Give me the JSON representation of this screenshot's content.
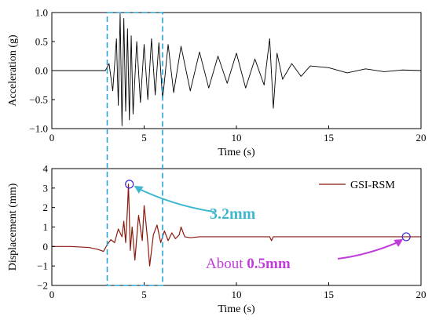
{
  "chart_data": [
    {
      "type": "line",
      "xlabel": "Time (s)",
      "ylabel": "Acceleration (g)",
      "xlim": [
        0,
        20
      ],
      "ylim": [
        -1.0,
        1.0
      ],
      "xticks": [
        0,
        5,
        10,
        15,
        20
      ],
      "yticks": [
        -1.0,
        -0.5,
        0.0,
        0.5,
        1.0
      ],
      "x_tick_labels": [
        "0",
        "5",
        "10",
        "15",
        "20"
      ],
      "y_tick_labels": [
        "−1.0",
        "−0.5",
        "0.0",
        "0.5",
        "1.0"
      ],
      "series": [
        {
          "color": "#000000",
          "x": [
            0,
            1,
            2,
            2.9,
            3.1,
            3.3,
            3.5,
            3.6,
            3.7,
            3.8,
            3.9,
            4.0,
            4.1,
            4.2,
            4.3,
            4.4,
            4.6,
            4.8,
            5.0,
            5.2,
            5.4,
            5.6,
            5.8,
            6.0,
            6.3,
            6.6,
            7.0,
            7.5,
            8.0,
            8.5,
            9.0,
            9.5,
            10.0,
            10.5,
            11.0,
            11.5,
            11.8,
            12.0,
            12.2,
            12.5,
            13.0,
            13.5,
            14.0,
            15.0,
            16.0,
            17.0,
            18.0,
            19.0,
            20.0
          ],
          "values": [
            0.0,
            0.0,
            0.0,
            0.0,
            0.12,
            -0.35,
            0.55,
            -0.6,
            0.98,
            -0.95,
            0.9,
            -0.7,
            0.72,
            -0.85,
            0.6,
            -0.75,
            0.5,
            -0.55,
            0.45,
            -0.5,
            0.55,
            -0.42,
            0.48,
            -0.5,
            0.45,
            -0.38,
            0.42,
            -0.35,
            0.32,
            -0.3,
            0.25,
            -0.22,
            0.3,
            -0.3,
            0.2,
            -0.25,
            0.55,
            -0.65,
            0.3,
            -0.15,
            0.12,
            -0.1,
            0.08,
            0.05,
            -0.04,
            0.03,
            -0.02,
            0.01,
            0.0
          ]
        }
      ],
      "annotations": []
    },
    {
      "type": "line",
      "xlabel": "Time (s)",
      "ylabel": "Displacement (mm)",
      "xlim": [
        0,
        20
      ],
      "ylim": [
        -2,
        4
      ],
      "xticks": [
        0,
        5,
        10,
        15,
        20
      ],
      "yticks": [
        -2,
        -1,
        0,
        1,
        2,
        3,
        4
      ],
      "x_tick_labels": [
        "0",
        "5",
        "10",
        "15",
        "20"
      ],
      "y_tick_labels": [
        "−2",
        "−1",
        "0",
        "1",
        "2",
        "3",
        "4"
      ],
      "legend": "top-right",
      "series": [
        {
          "name": "GSI-RSM",
          "color": "#8b1a10",
          "x": [
            0,
            1,
            2,
            2.5,
            2.8,
            3.0,
            3.2,
            3.4,
            3.6,
            3.8,
            3.9,
            4.0,
            4.1,
            4.15,
            4.25,
            4.35,
            4.5,
            4.7,
            4.9,
            5.0,
            5.1,
            5.2,
            5.3,
            5.5,
            5.7,
            5.9,
            6.1,
            6.3,
            6.5,
            6.7,
            6.9,
            7.0,
            7.2,
            7.5,
            8,
            9,
            10,
            11,
            11.8,
            11.9,
            12.0,
            13,
            14,
            15,
            16,
            17,
            18,
            19,
            19.2,
            20
          ],
          "values": [
            0.0,
            0.0,
            -0.05,
            -0.15,
            -0.25,
            0.1,
            0.35,
            0.2,
            0.9,
            0.5,
            1.3,
            0.2,
            2.0,
            3.2,
            -0.2,
            1.0,
            -0.7,
            1.6,
            0.3,
            2.1,
            1.2,
            0.2,
            -1.0,
            0.6,
            1.1,
            0.2,
            0.8,
            0.3,
            0.7,
            0.4,
            0.6,
            1.0,
            0.5,
            0.45,
            0.5,
            0.5,
            0.5,
            0.5,
            0.5,
            0.3,
            0.5,
            0.5,
            0.5,
            0.5,
            0.5,
            0.5,
            0.5,
            0.5,
            0.5,
            0.5
          ]
        }
      ],
      "annotations": [
        {
          "label": "3.2mm",
          "x": 4.2,
          "y": 3.2,
          "color": "#3fb8cf"
        },
        {
          "prefix": "About ",
          "value": "0.5mm",
          "x": 19.2,
          "y": 0.5,
          "color": "#c03ddc"
        }
      ]
    }
  ],
  "highlight_window": {
    "x": [
      3,
      6
    ],
    "color": "#2aa6d6"
  }
}
